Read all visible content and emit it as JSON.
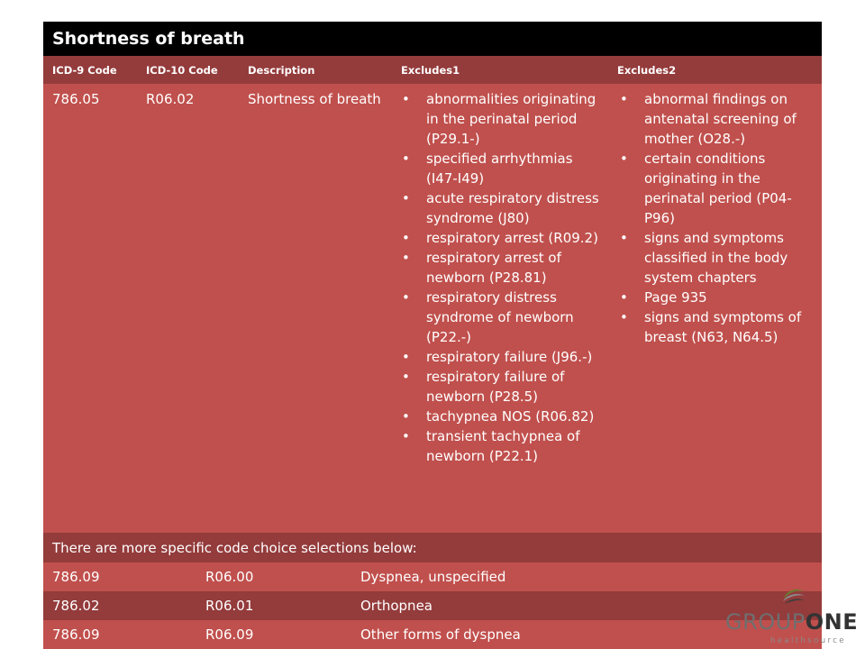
{
  "title": "Shortness of breath",
  "headers": [
    "ICD-9 Code",
    "ICD-10 Code",
    "Description",
    "Excludes1",
    "Excludes2"
  ],
  "main_row": {
    "icd9": "786.05",
    "icd10": "R06.02",
    "description": "Shortness of breath",
    "excludes1": [
      "abnormalities originating in the perinatal period (P29.1-)",
      "specified arrhythmias (I47-I49)",
      "acute respiratory distress syndrome (J80)",
      "respiratory arrest (R09.2)",
      "respiratory arrest of newborn (P28.81)",
      "respiratory distress syndrome of newborn (P22.-)",
      "respiratory failure (J96.-)",
      "respiratory failure of newborn (P28.5)",
      "tachypnea NOS (R06.82)",
      "transient tachypnea of newborn (P22.1)"
    ],
    "excludes2": [
      "abnormal findings on antenatal screening of mother (O28.-)",
      "certain conditions originating in the perinatal period (P04-P96)",
      "signs and symptoms classified in the body system chapters",
      "Page 935",
      "signs and symptoms of breast (N63, N64.5)"
    ]
  },
  "note": "There are more specific code choice selections below:",
  "sub_rows": [
    {
      "icd9": "786.09",
      "icd10": "R06.00",
      "description": "Dyspnea, unspecified"
    },
    {
      "icd9": "786.02",
      "icd10": "R06.01",
      "description": "Orthopnea"
    },
    {
      "icd9": "786.09",
      "icd10": "R06.09",
      "description": "Other forms of dyspnea"
    }
  ],
  "logo": {
    "word_light": "GROUP",
    "word_bold": "ONE",
    "tagline": "healthsource"
  },
  "colors": {
    "title_bg": "#000000",
    "dark_red": "#943b3b",
    "light_red": "#c0504d"
  }
}
